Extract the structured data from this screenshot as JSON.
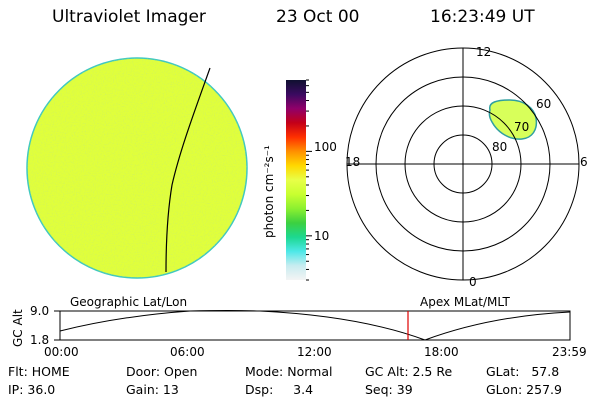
{
  "header": {
    "instrument": "Ultraviolet Imager",
    "date": "23 Oct 00",
    "time": "16:23:49 UT"
  },
  "colors": {
    "disk_fill": "#e0ff3c",
    "disk_edge": "#40c8c0",
    "auroral_oval": "#d8ff5a",
    "auroral_edge": "#30a0a0",
    "timeline_marker": "#e00000"
  },
  "colorbar": {
    "title": "photon cm⁻²s⁻¹",
    "scale": "log",
    "range": [
      3,
      700
    ],
    "ticks": [
      {
        "value": 10,
        "label": "10"
      },
      {
        "value": 100,
        "label": "100"
      }
    ],
    "palette": [
      "#f4f4f4",
      "#c8ecf0",
      "#4ee8e8",
      "#1cd890",
      "#3cd040",
      "#8cf030",
      "#c8ff30",
      "#e8ff48",
      "#ffd800",
      "#ff9000",
      "#ff3000",
      "#c40018",
      "#90006a",
      "#3a0a60",
      "#101030"
    ]
  },
  "polar_plot": {
    "mlt_labels": {
      "top": "12",
      "right": "6",
      "bottom": "0",
      "left": "18"
    },
    "lat_labels": [
      "80",
      "70",
      "60"
    ]
  },
  "timeline": {
    "left_title": "Geographic Lat/Lon",
    "right_title": "Apex MLat/MLT",
    "axis_label": "GC Alt",
    "y_ticks": [
      "9.0",
      "1.8"
    ],
    "x_ticks": [
      "00:00",
      "06:00",
      "12:00",
      "18:00",
      "23:59"
    ]
  },
  "footer": {
    "flt": "Flt: HOME",
    "ip": "IP: 36.0",
    "door": "Door: Open",
    "gain": "Gain: 13",
    "mode": "Mode: Normal",
    "dsp": "Dsp:     3.4",
    "gc_alt": "GC Alt: 2.5 Re",
    "seq": "Seq: 39",
    "glat": "GLat:   57.8",
    "glon": "GLon: 257.9"
  }
}
